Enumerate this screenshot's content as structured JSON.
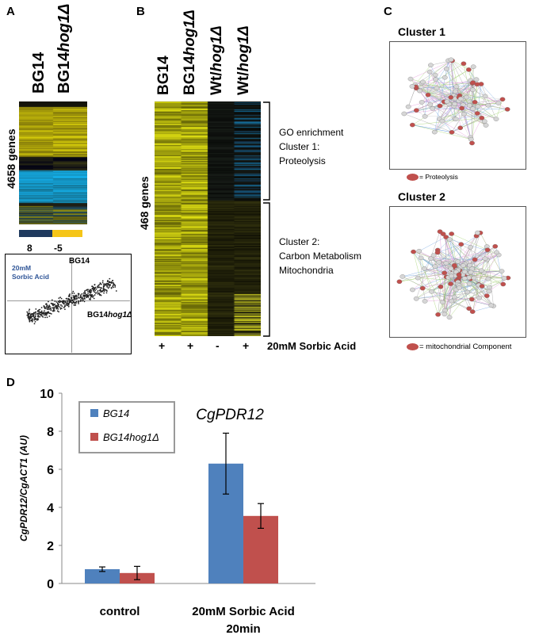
{
  "panel_a": {
    "letter": "A",
    "col1": "BG14",
    "col2_prefix": "BG14",
    "col2_italic": "hog1Δ",
    "genes_label": "4658 genes",
    "scale_left": "8",
    "scale_right": "-5",
    "scatter": {
      "condition": "20mM\nSorbic Acid",
      "y_label": "BG14",
      "x_label_prefix": "BG14",
      "x_label_italic": "hog1Δ"
    }
  },
  "panel_b": {
    "letter": "B",
    "cols": [
      {
        "prefix": "BG14",
        "italic": ""
      },
      {
        "prefix": "BG14",
        "italic": "hog1Δ"
      },
      {
        "prefix": "Wt/",
        "italic": "hog1Δ"
      },
      {
        "prefix": "Wt/",
        "italic": "hog1Δ"
      }
    ],
    "genes_label": "468 genes",
    "signs": [
      "+",
      "+",
      "-",
      "+"
    ],
    "treatment": "20mM Sorbic Acid",
    "cluster1": [
      "GO enrichment",
      "Cluster 1:",
      "Proteolysis"
    ],
    "cluster2": [
      "Cluster 2:",
      "Carbon Metabolism",
      "Mitochondria"
    ]
  },
  "panel_c": {
    "letter": "C",
    "cluster1_title": "Cluster 1",
    "cluster1_legend": "= Proteolysis",
    "cluster2_title": "Cluster 2",
    "cluster2_legend": "= mitochondrial Component"
  },
  "panel_d": {
    "letter": "D",
    "colors": {
      "BG14": "#4f81bd",
      "BG14hog1": "#c0504d"
    },
    "chart_data": {
      "type": "bar",
      "title": "CgPDR12",
      "ylabel": "CgPDR12/CgACT1 (AU)",
      "xlabel": "",
      "categories": [
        "control",
        "20mM Sorbic Acid\n20min"
      ],
      "series": [
        {
          "name": "BG14",
          "values": [
            0.75,
            6.3
          ],
          "errors": [
            0.12,
            1.6
          ]
        },
        {
          "name": "BG14hog1Δ",
          "values": [
            0.55,
            3.55
          ],
          "errors": [
            0.35,
            0.65
          ]
        }
      ],
      "ylim": [
        0,
        10
      ],
      "yticks": [
        "0",
        "2",
        "4",
        "6",
        "8",
        "10"
      ],
      "legend": [
        "BG14",
        "BG14hog1Δ"
      ]
    }
  }
}
